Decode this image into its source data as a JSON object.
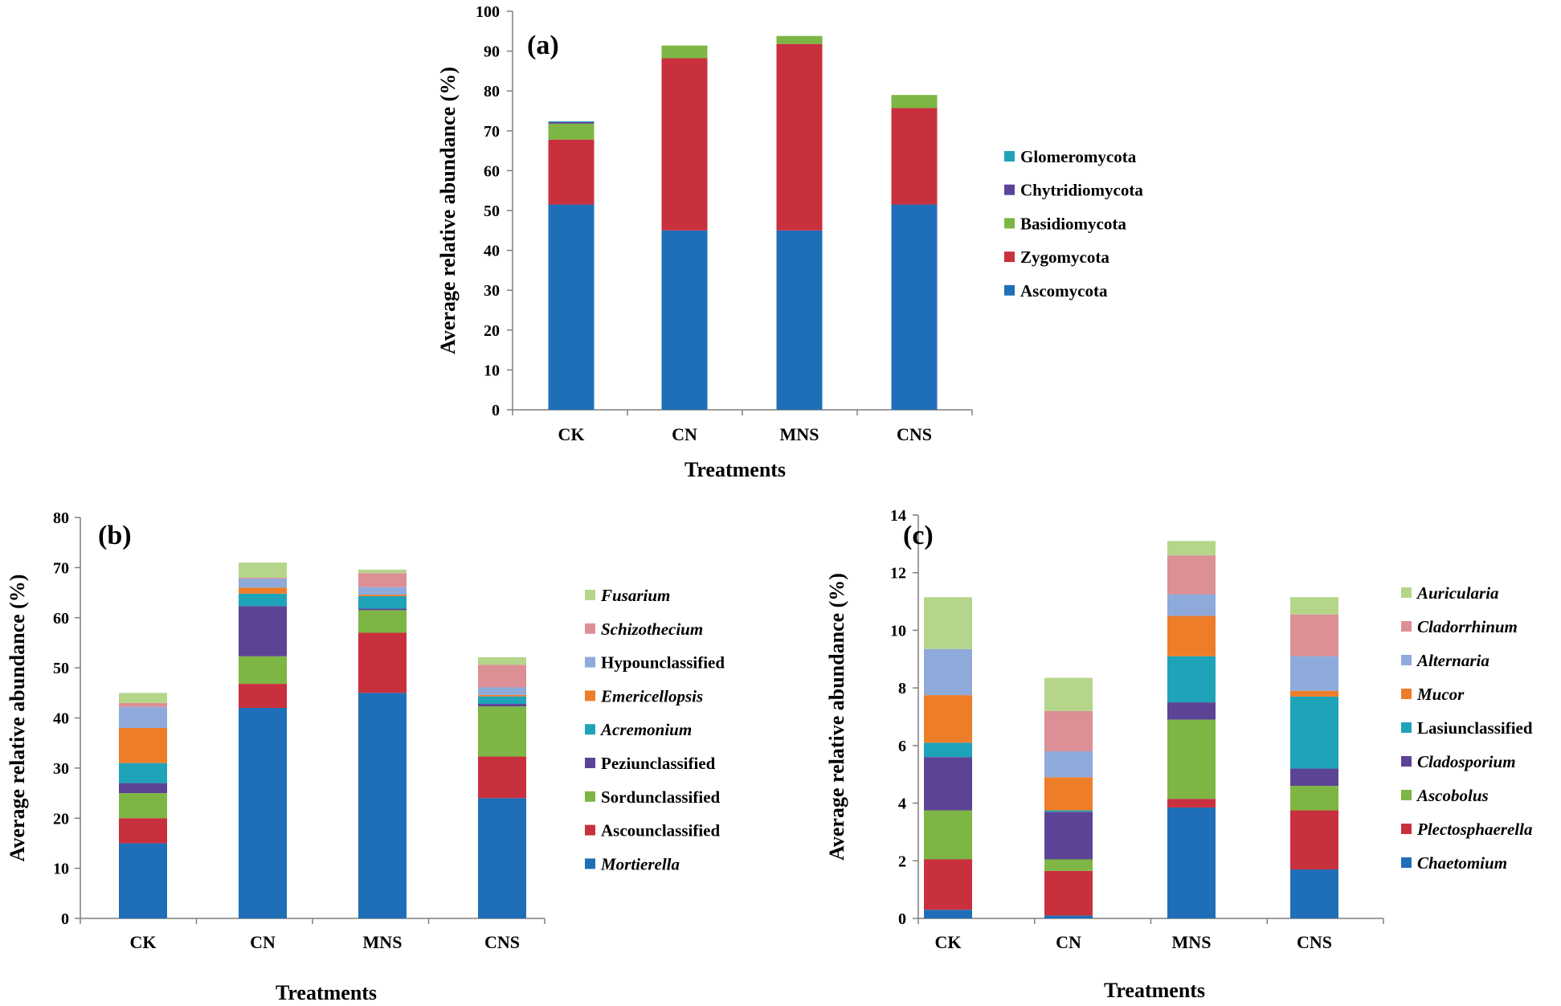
{
  "chart_data": [
    {
      "panel_label": "(a)",
      "type": "bar",
      "stacked": true,
      "categories": [
        "CK",
        "CN",
        "MNS",
        "CNS"
      ],
      "xlabel": "Treatments",
      "ylabel": "Average relative abundance (%)",
      "ylim": [
        0,
        100
      ],
      "yticks": [
        "0",
        "10",
        "20",
        "30",
        "40",
        "50",
        "60",
        "70",
        "80",
        "90",
        "100"
      ],
      "grid": false,
      "legend_position": "right",
      "series": [
        {
          "name": "Ascomycota",
          "color": "#1f6fb8",
          "italic": false,
          "values": [
            51.5,
            45,
            45,
            51.5
          ]
        },
        {
          "name": "Zygomycota",
          "color": "#c9303e",
          "italic": false,
          "values": [
            16.3,
            43.2,
            46.8,
            24.2
          ]
        },
        {
          "name": "Basidiomycota",
          "color": "#7db644",
          "italic": false,
          "values": [
            4.0,
            3.2,
            2.0,
            3.3
          ]
        },
        {
          "name": "Chytridiomycota",
          "color": "#5d4396",
          "italic": false,
          "values": [
            0.4,
            0,
            0,
            0
          ]
        },
        {
          "name": "Glomeromycota",
          "color": "#1fa3b8",
          "italic": false,
          "values": [
            0.2,
            0,
            0,
            0
          ]
        }
      ]
    },
    {
      "panel_label": "(b)",
      "type": "bar",
      "stacked": true,
      "categories": [
        "CK",
        "CN",
        "MNS",
        "CNS"
      ],
      "xlabel": "Treatments",
      "ylabel": "Average relative abundance (%)",
      "ylim": [
        0,
        80
      ],
      "yticks": [
        "0",
        "10",
        "20",
        "30",
        "40",
        "50",
        "60",
        "70",
        "80"
      ],
      "grid": false,
      "legend_position": "right",
      "series": [
        {
          "name": "Mortierella",
          "color": "#1f6fb8",
          "italic": true,
          "values": [
            15,
            42,
            45,
            24
          ]
        },
        {
          "name": "Ascounclassified",
          "color": "#c9303e",
          "italic": false,
          "values": [
            5,
            4.8,
            12,
            8.3
          ]
        },
        {
          "name": "Sordunclassified",
          "color": "#7db644",
          "italic": false,
          "values": [
            5,
            5.5,
            4.5,
            10
          ]
        },
        {
          "name": "Peziunclassified",
          "color": "#5d4396",
          "italic": false,
          "values": [
            2,
            10,
            0.3,
            0.5
          ]
        },
        {
          "name": "Acremonium",
          "color": "#1fa3b8",
          "italic": true,
          "values": [
            4,
            2.5,
            2.5,
            1.5
          ]
        },
        {
          "name": "Emericellopsis",
          "color": "#ee7d2a",
          "italic": true,
          "values": [
            7,
            1.2,
            0.3,
            0.3
          ]
        },
        {
          "name": "Hypounclassified",
          "color": "#8eaadb",
          "italic": false,
          "values": [
            4.2,
            1.8,
            1.5,
            1.5
          ]
        },
        {
          "name": "Schizothecium",
          "color": "#dc8f95",
          "italic": true,
          "values": [
            0.8,
            0.2,
            2.8,
            4.5
          ]
        },
        {
          "name": "Fusarium",
          "color": "#b5d68a",
          "italic": true,
          "values": [
            2,
            3,
            0.7,
            1.5
          ]
        }
      ]
    },
    {
      "panel_label": "(c)",
      "type": "bar",
      "stacked": true,
      "categories": [
        "CK",
        "CN",
        "MNS",
        "CNS"
      ],
      "xlabel": "Treatments",
      "ylabel": "Average relative abundance (%)",
      "ylim": [
        0,
        14
      ],
      "yticks": [
        "0",
        "2",
        "4",
        "6",
        "8",
        "10",
        "12",
        "14"
      ],
      "grid": false,
      "legend_position": "right",
      "series": [
        {
          "name": "Chaetomium",
          "color": "#1f6fb8",
          "italic": true,
          "values": [
            0.3,
            0.1,
            3.85,
            1.7
          ]
        },
        {
          "name": "Plectosphaerella",
          "color": "#c9303e",
          "italic": true,
          "values": [
            1.75,
            1.55,
            0.3,
            2.05
          ]
        },
        {
          "name": "Ascobolus",
          "color": "#7db644",
          "italic": true,
          "values": [
            1.7,
            0.4,
            2.75,
            0.85
          ]
        },
        {
          "name": "Cladosporium",
          "color": "#5d4396",
          "italic": true,
          "values": [
            1.85,
            1.65,
            0.6,
            0.6
          ]
        },
        {
          "name": "Lasiunclassified",
          "color": "#1fa3b8",
          "italic": false,
          "values": [
            0.5,
            0.05,
            1.6,
            2.5
          ]
        },
        {
          "name": "Mucor",
          "color": "#ee7d2a",
          "italic": true,
          "values": [
            1.65,
            1.15,
            1.4,
            0.2
          ]
        },
        {
          "name": "Alternaria",
          "color": "#8eaadb",
          "italic": true,
          "values": [
            1.6,
            0.9,
            0.75,
            1.2
          ]
        },
        {
          "name": "Cladorrhinum",
          "color": "#dc8f95",
          "italic": true,
          "values": [
            0,
            1.4,
            1.35,
            1.45
          ]
        },
        {
          "name": "Auricularia",
          "color": "#b5d68a",
          "italic": true,
          "values": [
            1.8,
            1.15,
            0.5,
            0.6
          ]
        }
      ]
    }
  ]
}
